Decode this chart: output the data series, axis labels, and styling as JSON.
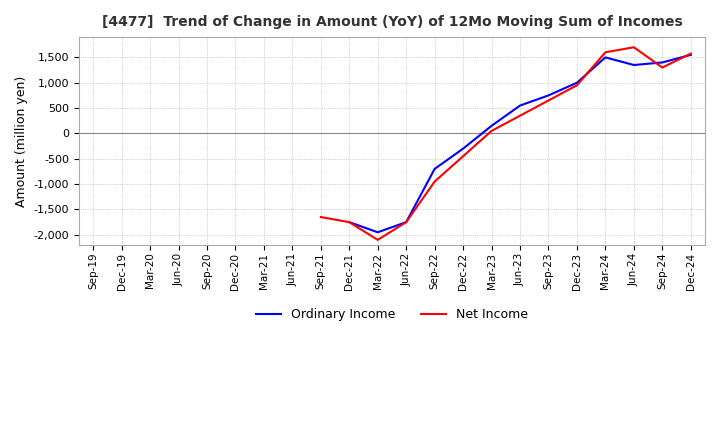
{
  "title": "[4477]  Trend of Change in Amount (YoY) of 12Mo Moving Sum of Incomes",
  "ylabel": "Amount (million yen)",
  "ylim": [
    -2200,
    1900
  ],
  "yticks": [
    -2000,
    -1500,
    -1000,
    -500,
    0,
    500,
    1000,
    1500
  ],
  "background_color": "#ffffff",
  "grid_color": "#aaaaaa",
  "ordinary_income_color": "#0000ff",
  "net_income_color": "#ff0000",
  "x_labels": [
    "Sep-19",
    "Dec-19",
    "Mar-20",
    "Jun-20",
    "Sep-20",
    "Dec-20",
    "Mar-21",
    "Jun-21",
    "Sep-21",
    "Dec-21",
    "Mar-22",
    "Jun-22",
    "Sep-22",
    "Dec-22",
    "Mar-23",
    "Jun-23",
    "Sep-23",
    "Dec-23",
    "Mar-24",
    "Jun-24",
    "Sep-24",
    "Dec-24"
  ],
  "ordinary_income": [
    null,
    null,
    null,
    null,
    null,
    null,
    null,
    null,
    null,
    -1750,
    -1950,
    -1750,
    -700,
    -300,
    150,
    550,
    750,
    1000,
    1500,
    1350,
    1400,
    1550
  ],
  "net_income": [
    null,
    null,
    null,
    null,
    null,
    null,
    null,
    null,
    -1650,
    -1750,
    -2100,
    -1750,
    -950,
    -450,
    50,
    350,
    650,
    950,
    1600,
    1700,
    1300,
    1575
  ]
}
